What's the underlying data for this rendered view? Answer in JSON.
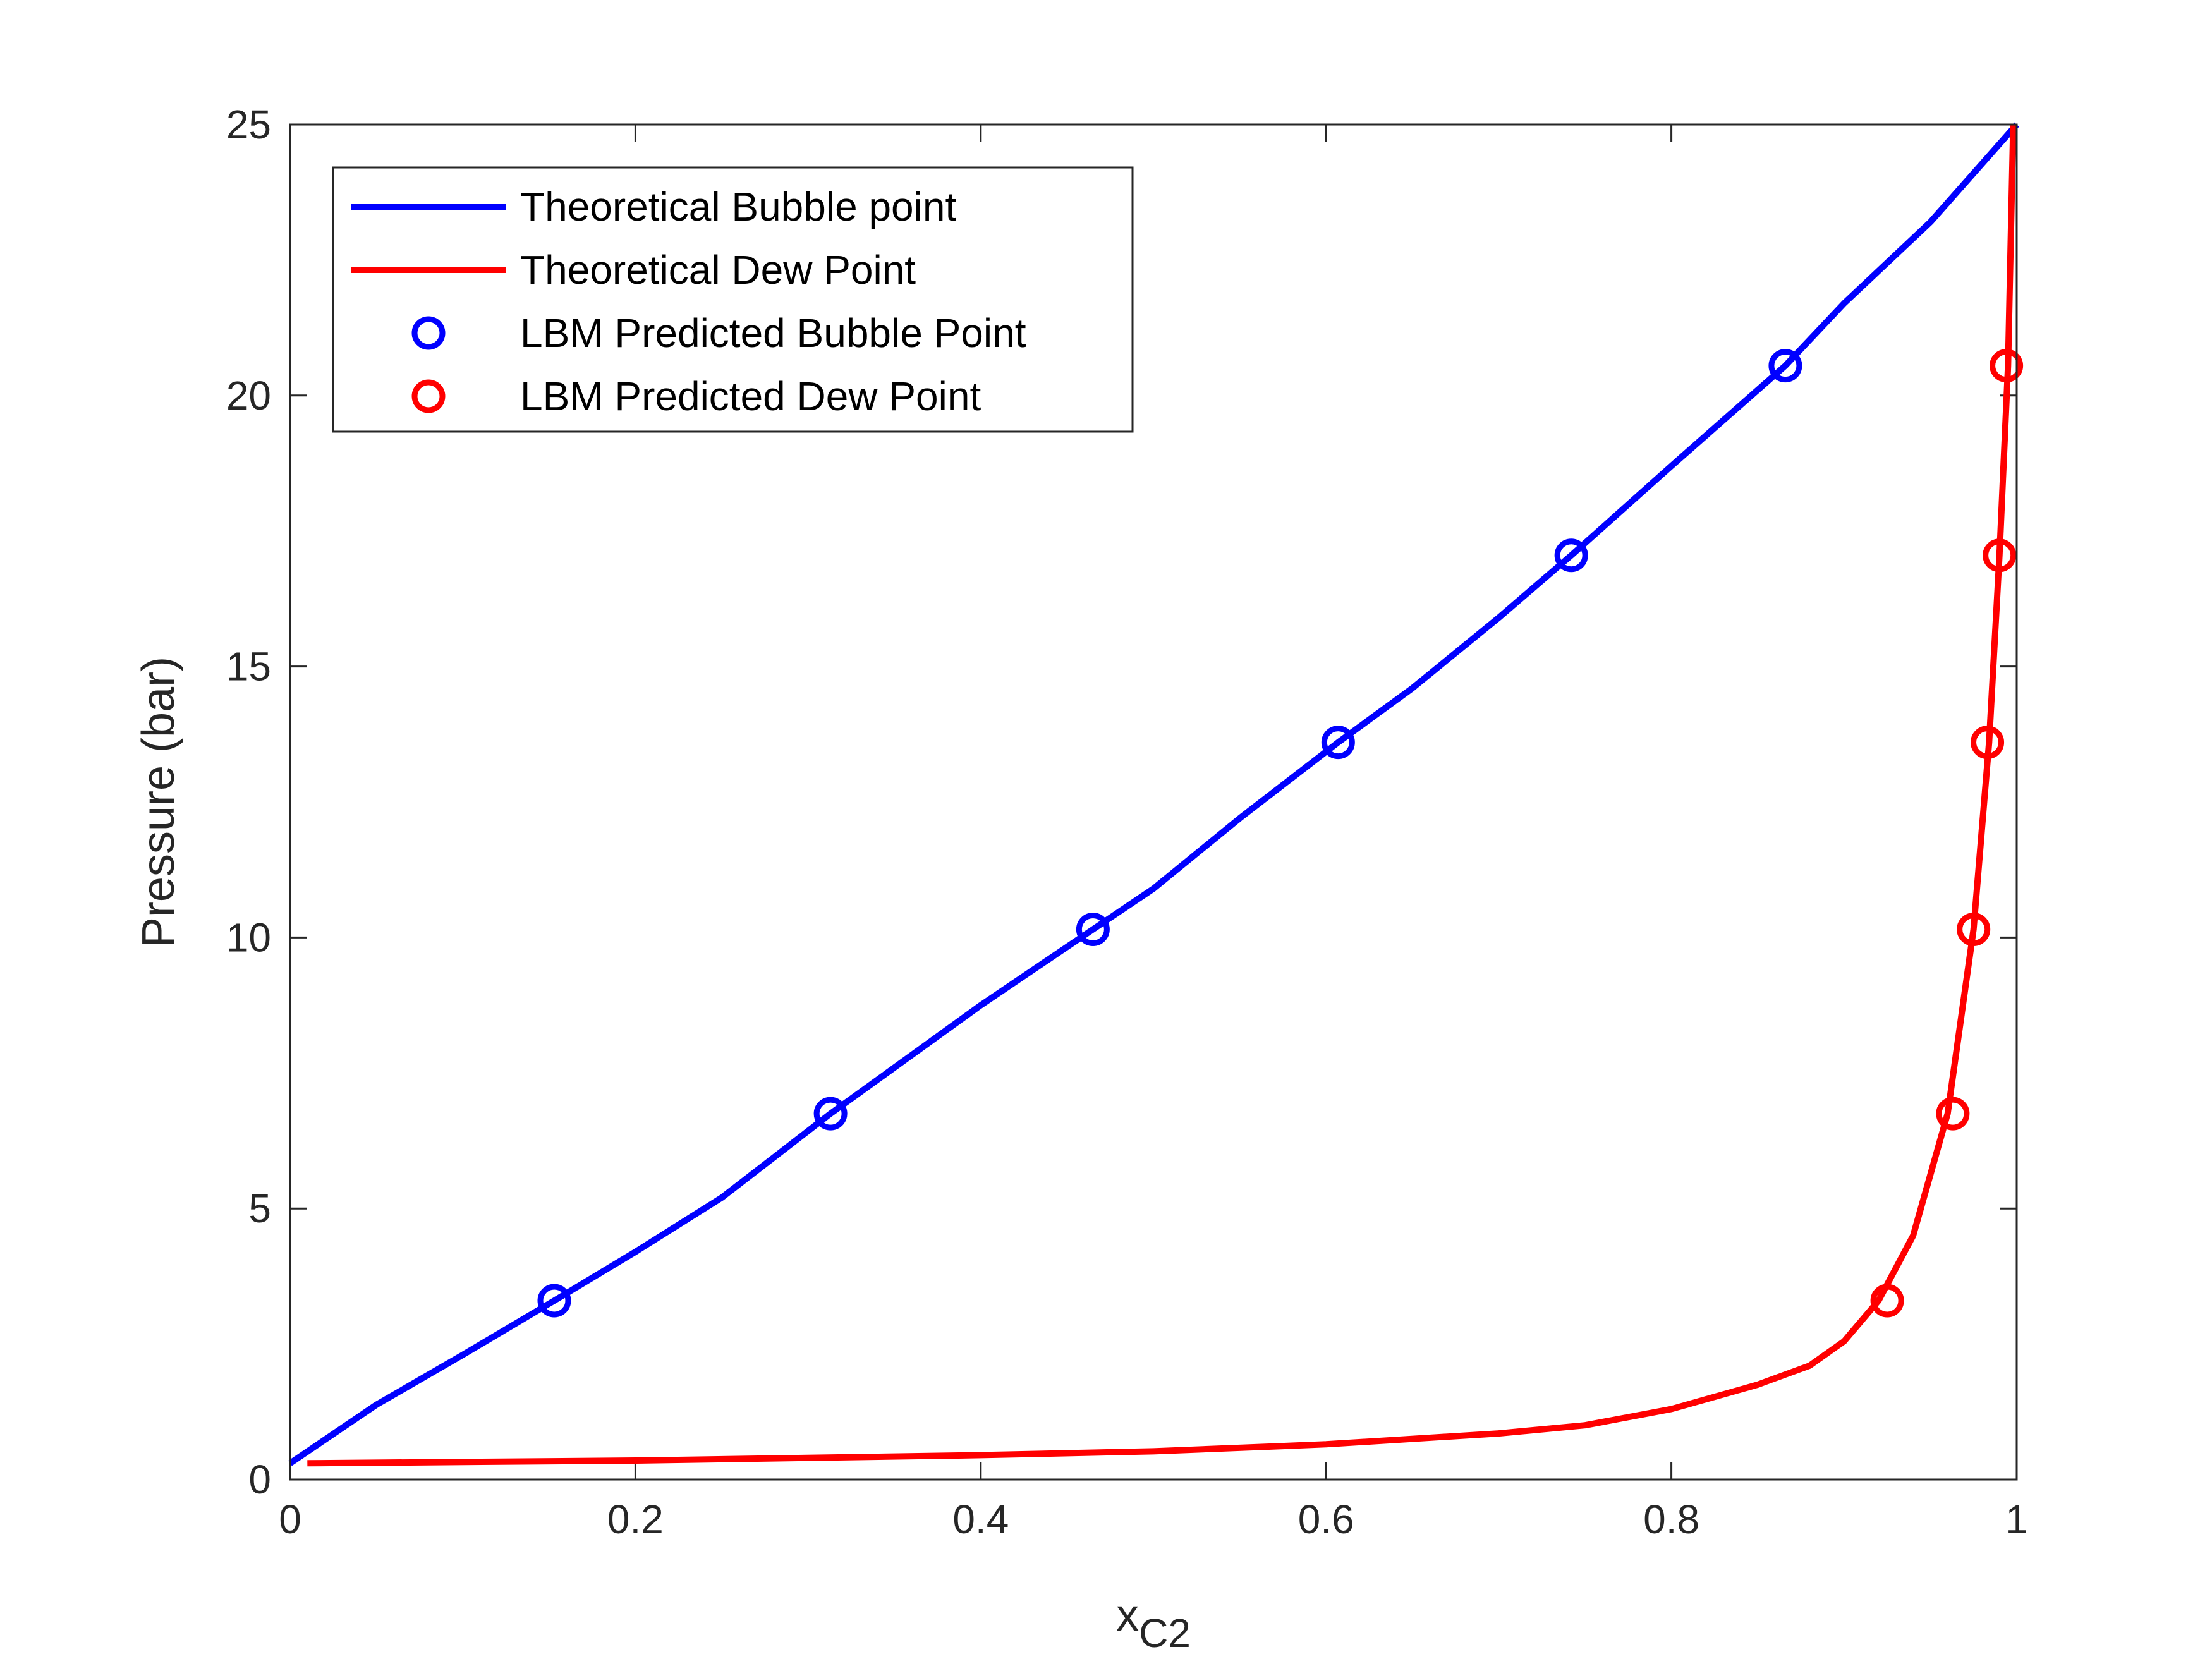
{
  "chart_data": {
    "type": "line",
    "xlabel": "x",
    "xlabel_subscript": "C2",
    "ylabel": "Pressure (bar)",
    "xlim": [
      0,
      1
    ],
    "ylim": [
      0,
      25
    ],
    "x_ticks": [
      0,
      0.2,
      0.4,
      0.6,
      0.8,
      1
    ],
    "x_tick_labels": [
      "0",
      "0.2",
      "0.4",
      "0.6",
      "0.8",
      "1"
    ],
    "y_ticks": [
      0,
      5,
      10,
      15,
      20,
      25
    ],
    "y_tick_labels": [
      "0",
      "5",
      "10",
      "15",
      "20",
      "25"
    ],
    "grid": false,
    "legend_position": "top-left",
    "series": [
      {
        "name": "Theoretical Bubble point",
        "kind": "line",
        "color": "#0000ff",
        "x": [
          0,
          0.05,
          0.1,
          0.153,
          0.2,
          0.25,
          0.313,
          0.35,
          0.4,
          0.465,
          0.5,
          0.55,
          0.607,
          0.65,
          0.7,
          0.742,
          0.8,
          0.866,
          0.9,
          0.95,
          1.0
        ],
        "y": [
          0.3,
          1.38,
          2.3,
          3.3,
          4.2,
          5.2,
          6.75,
          7.6,
          8.75,
          10.15,
          10.9,
          12.2,
          13.6,
          14.6,
          15.9,
          17.05,
          18.7,
          20.55,
          21.7,
          23.2,
          25.0
        ]
      },
      {
        "name": "Theoretical Dew Point",
        "kind": "line",
        "color": "#ff0000",
        "x": [
          0.01,
          0.2,
          0.4,
          0.5,
          0.6,
          0.7,
          0.75,
          0.8,
          0.85,
          0.88,
          0.9,
          0.92,
          0.94,
          0.96,
          0.975,
          0.984,
          0.99,
          0.995,
          0.998
        ],
        "y": [
          0.3,
          0.35,
          0.45,
          0.52,
          0.65,
          0.85,
          1.0,
          1.3,
          1.75,
          2.1,
          2.55,
          3.3,
          4.5,
          6.75,
          10.15,
          13.6,
          17.05,
          20.55,
          25.0
        ]
      },
      {
        "name": "LBM Predicted Bubble Point",
        "kind": "marker",
        "color": "#0000ff",
        "x": [
          0.153,
          0.313,
          0.465,
          0.607,
          0.742,
          0.866
        ],
        "y": [
          3.3,
          6.75,
          10.15,
          13.6,
          17.05,
          20.55
        ]
      },
      {
        "name": "LBM Predicted Dew Point",
        "kind": "marker",
        "color": "#ff0000",
        "x": [
          0.925,
          0.963,
          0.975,
          0.983,
          0.99,
          0.994
        ],
        "y": [
          3.3,
          6.75,
          10.15,
          13.6,
          17.05,
          20.55
        ]
      }
    ]
  }
}
